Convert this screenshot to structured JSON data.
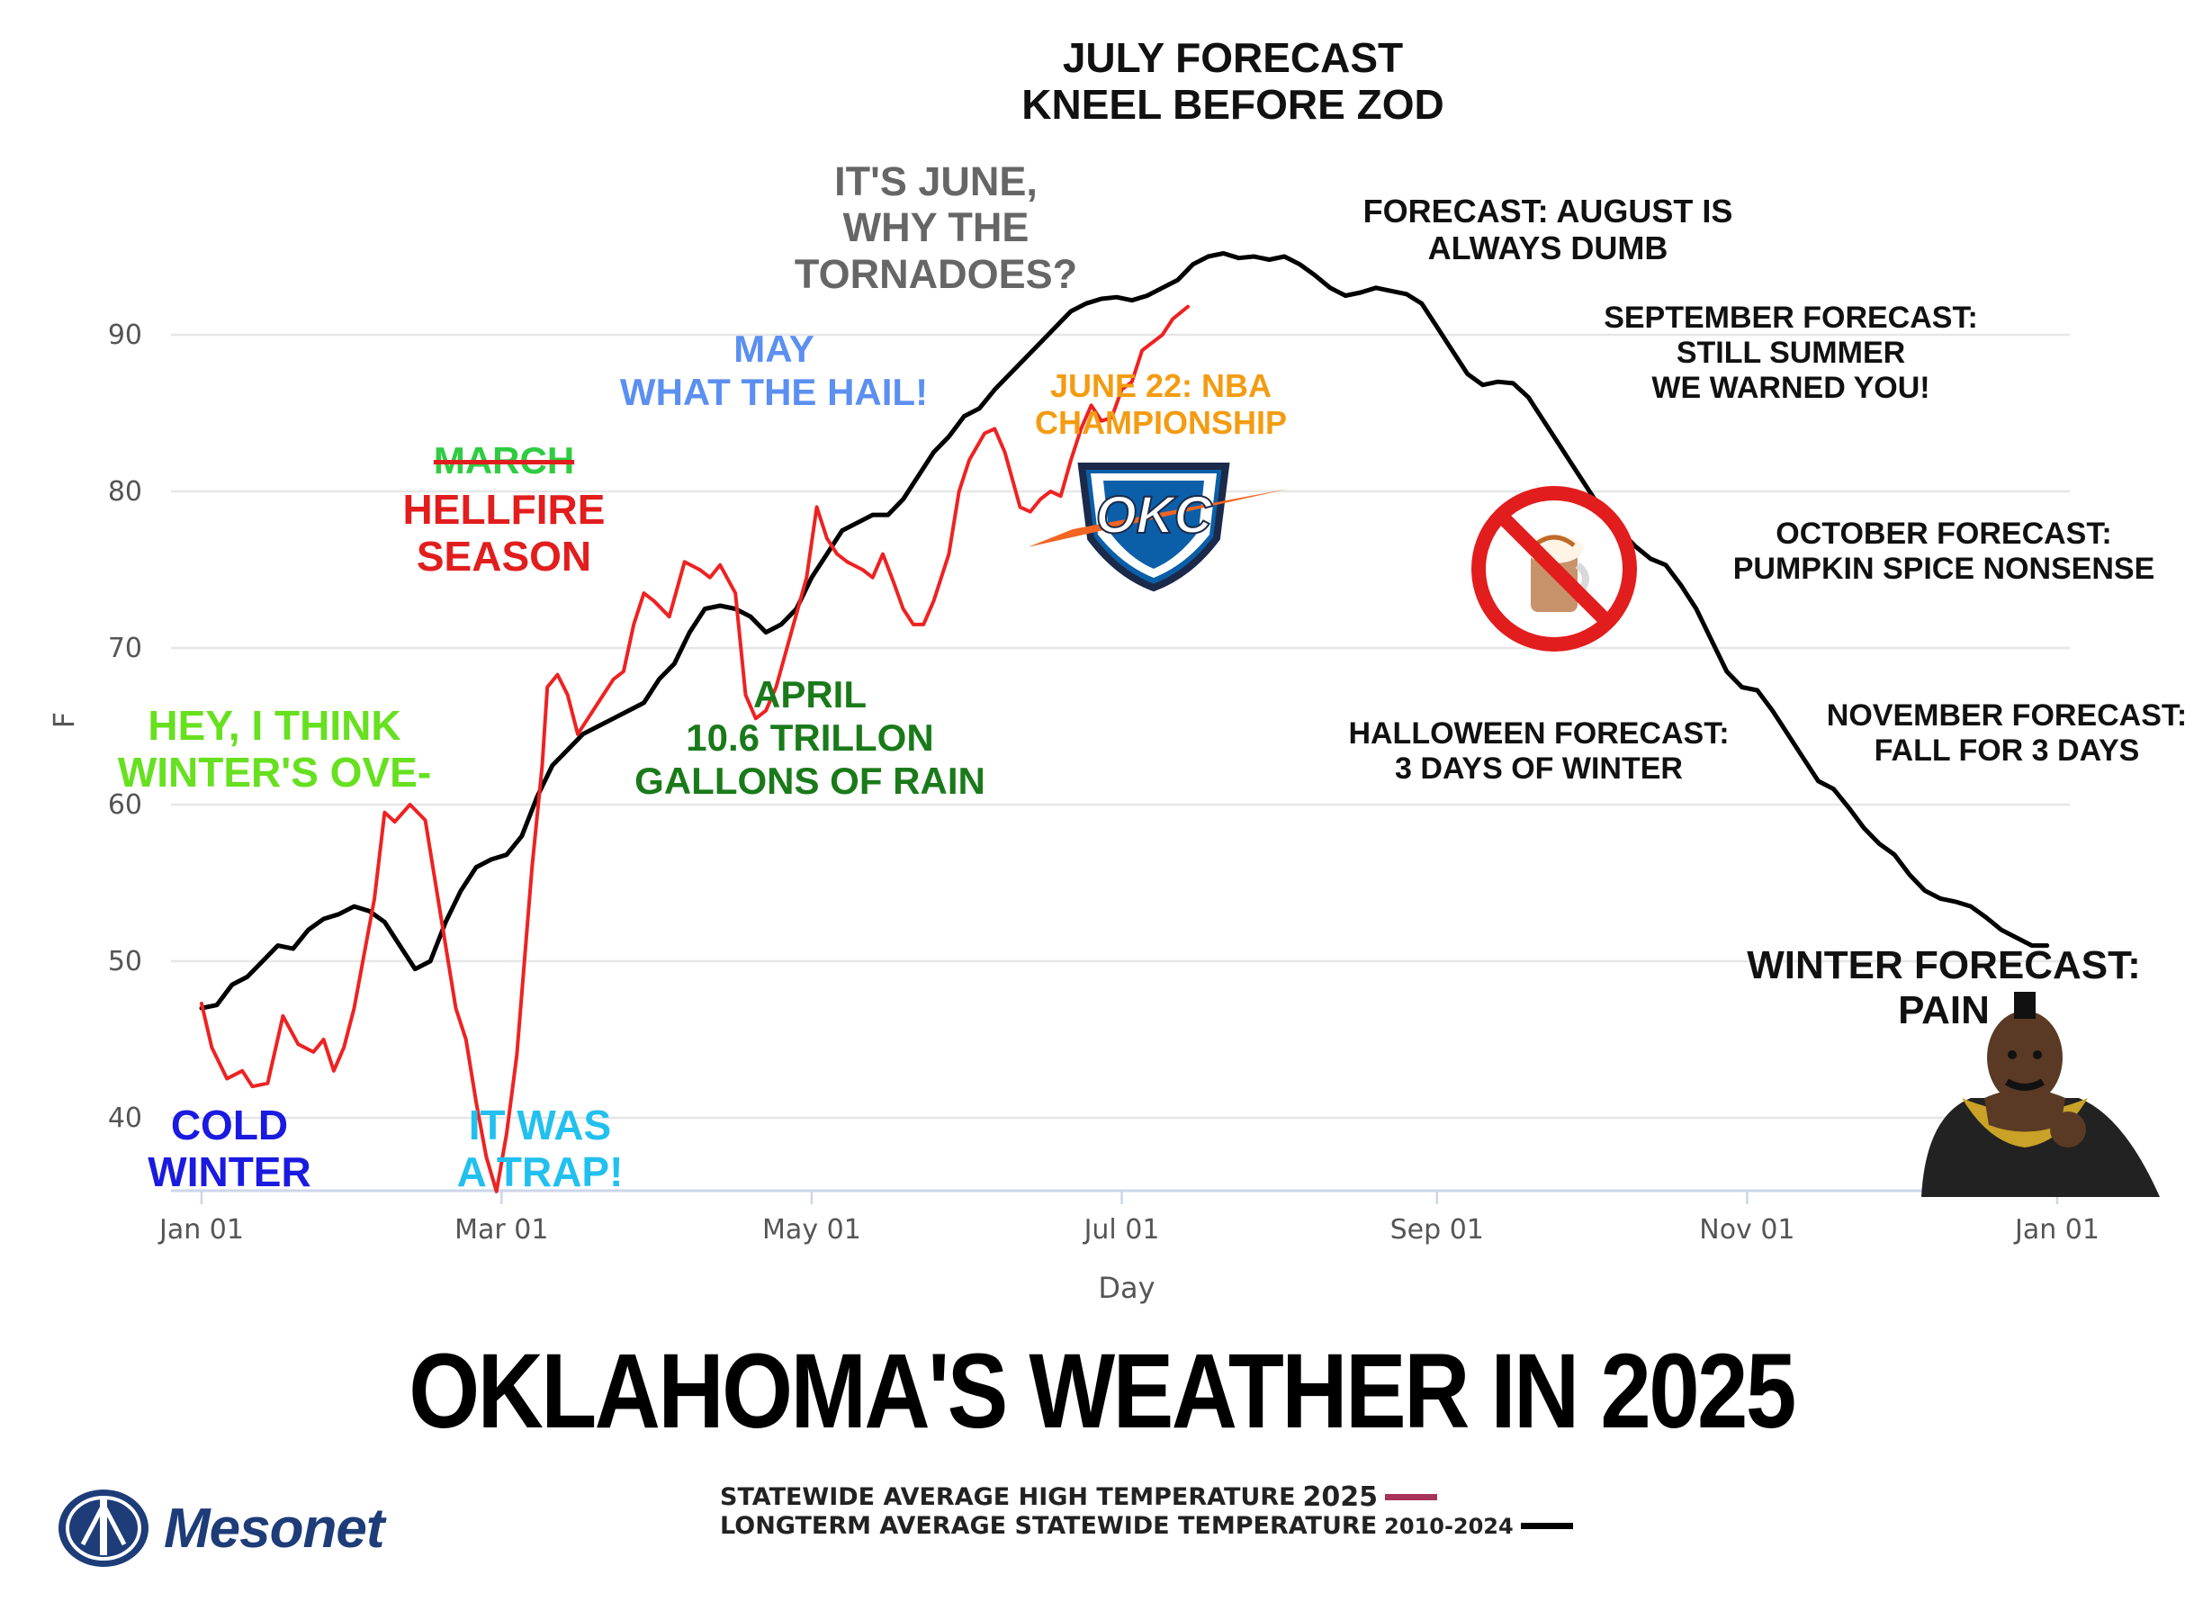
{
  "chart_data": {
    "type": "line",
    "ylabel": "F",
    "xlabel": "Day",
    "x_ticks": [
      "Jan 01",
      "Mar 01",
      "May 01",
      "Jul 01",
      "Sep 01",
      "Nov 01",
      "Jan 01"
    ],
    "y_ticks": [
      40,
      50,
      60,
      70,
      80,
      90
    ],
    "ylim": [
      35,
      97
    ],
    "grid": true,
    "series": [
      {
        "name": "STATEWIDE AVERAGE HIGH TEMPERATURE 2025",
        "color": "#ee2222",
        "points": [
          [
            1,
            47.3
          ],
          [
            3,
            44.5
          ],
          [
            6,
            42.5
          ],
          [
            9,
            43
          ],
          [
            11,
            42
          ],
          [
            14,
            42.2
          ],
          [
            17,
            46.5
          ],
          [
            20,
            44.7
          ],
          [
            23,
            44.2
          ],
          [
            25,
            45
          ],
          [
            27,
            43
          ],
          [
            29,
            44.5
          ],
          [
            31,
            47
          ],
          [
            35,
            54
          ],
          [
            37,
            59.5
          ],
          [
            39,
            58.9
          ],
          [
            42,
            60
          ],
          [
            45,
            59
          ],
          [
            48,
            53
          ],
          [
            51,
            47
          ],
          [
            53,
            45
          ],
          [
            55,
            41
          ],
          [
            57,
            37.5
          ],
          [
            59,
            35.3
          ],
          [
            61,
            39
          ],
          [
            63,
            44
          ],
          [
            66,
            56
          ],
          [
            68,
            62.5
          ],
          [
            69,
            67.5
          ],
          [
            71,
            68.3
          ],
          [
            73,
            67
          ],
          [
            75,
            64.5
          ],
          [
            77,
            65.5
          ],
          [
            79,
            66.5
          ],
          [
            82,
            68
          ],
          [
            84,
            68.5
          ],
          [
            86,
            71.5
          ],
          [
            88,
            73.5
          ],
          [
            90,
            73
          ],
          [
            93,
            72
          ],
          [
            96,
            75.5
          ],
          [
            99,
            75
          ],
          [
            101,
            74.5
          ],
          [
            103,
            75.3
          ],
          [
            106,
            73.5
          ],
          [
            108,
            67
          ],
          [
            110,
            65.5
          ],
          [
            112,
            66
          ],
          [
            114,
            67.5
          ],
          [
            117,
            71
          ],
          [
            120,
            74.5
          ],
          [
            122,
            79
          ],
          [
            124,
            77
          ],
          [
            126,
            76
          ],
          [
            128,
            75.5
          ],
          [
            131,
            75
          ],
          [
            133,
            74.5
          ],
          [
            135,
            76
          ],
          [
            137,
            74.3
          ],
          [
            139,
            72.5
          ],
          [
            141,
            71.5
          ],
          [
            143,
            71.5
          ],
          [
            145,
            73
          ],
          [
            148,
            76
          ],
          [
            150,
            80
          ],
          [
            152,
            82
          ],
          [
            155,
            83.7
          ],
          [
            157,
            84
          ],
          [
            159,
            82.5
          ],
          [
            162,
            79
          ],
          [
            164,
            78.7
          ],
          [
            166,
            79.5
          ],
          [
            168,
            80
          ],
          [
            170,
            79.7
          ],
          [
            172,
            82
          ],
          [
            174,
            84
          ],
          [
            176,
            85.5
          ],
          [
            178,
            84.5
          ],
          [
            180,
            84.7
          ],
          [
            182,
            86.5
          ],
          [
            184,
            87
          ],
          [
            186,
            89
          ],
          [
            188,
            89.5
          ],
          [
            190,
            90
          ],
          [
            192,
            91
          ],
          [
            195,
            91.8
          ]
        ]
      },
      {
        "name": "LONGTERM AVERAGE STATEWIDE TEMPERATURE 2010-2024",
        "color": "#000000",
        "points": [
          [
            1,
            47
          ],
          [
            4,
            47.2
          ],
          [
            7,
            48.5
          ],
          [
            10,
            49
          ],
          [
            13,
            50
          ],
          [
            16,
            51
          ],
          [
            19,
            50.8
          ],
          [
            22,
            52
          ],
          [
            25,
            52.7
          ],
          [
            28,
            53
          ],
          [
            31,
            53.5
          ],
          [
            34,
            53.2
          ],
          [
            37,
            52.5
          ],
          [
            40,
            51
          ],
          [
            43,
            49.5
          ],
          [
            46,
            50
          ],
          [
            49,
            52.5
          ],
          [
            52,
            54.5
          ],
          [
            55,
            56
          ],
          [
            58,
            56.5
          ],
          [
            61,
            56.8
          ],
          [
            64,
            58
          ],
          [
            67,
            60.5
          ],
          [
            70,
            62.5
          ],
          [
            73,
            63.5
          ],
          [
            76,
            64.5
          ],
          [
            79,
            65
          ],
          [
            82,
            65.5
          ],
          [
            85,
            66
          ],
          [
            88,
            66.5
          ],
          [
            91,
            68
          ],
          [
            94,
            69
          ],
          [
            97,
            71
          ],
          [
            100,
            72.5
          ],
          [
            103,
            72.7
          ],
          [
            106,
            72.5
          ],
          [
            109,
            72
          ],
          [
            112,
            71
          ],
          [
            115,
            71.5
          ],
          [
            118,
            72.5
          ],
          [
            121,
            74.5
          ],
          [
            124,
            76
          ],
          [
            127,
            77.5
          ],
          [
            130,
            78
          ],
          [
            133,
            78.5
          ],
          [
            136,
            78.5
          ],
          [
            139,
            79.5
          ],
          [
            142,
            81
          ],
          [
            145,
            82.5
          ],
          [
            148,
            83.5
          ],
          [
            151,
            84.8
          ],
          [
            154,
            85.3
          ],
          [
            157,
            86.5
          ],
          [
            160,
            87.5
          ],
          [
            163,
            88.5
          ],
          [
            166,
            89.5
          ],
          [
            169,
            90.5
          ],
          [
            172,
            91.5
          ],
          [
            175,
            92
          ],
          [
            178,
            92.3
          ],
          [
            181,
            92.4
          ],
          [
            184,
            92.2
          ],
          [
            187,
            92.5
          ],
          [
            190,
            93
          ],
          [
            193,
            93.5
          ],
          [
            196,
            94.5
          ],
          [
            199,
            95
          ],
          [
            202,
            95.2
          ],
          [
            205,
            94.9
          ],
          [
            208,
            95
          ],
          [
            211,
            94.8
          ],
          [
            214,
            95
          ],
          [
            217,
            94.5
          ],
          [
            220,
            93.8
          ],
          [
            223,
            93
          ],
          [
            226,
            92.5
          ],
          [
            229,
            92.7
          ],
          [
            232,
            93
          ],
          [
            235,
            92.8
          ],
          [
            238,
            92.6
          ],
          [
            241,
            92
          ],
          [
            244,
            90.5
          ],
          [
            247,
            89
          ],
          [
            250,
            87.5
          ],
          [
            253,
            86.8
          ],
          [
            256,
            87
          ],
          [
            259,
            86.9
          ],
          [
            262,
            86
          ],
          [
            265,
            84.5
          ],
          [
            268,
            83
          ],
          [
            271,
            81.5
          ],
          [
            274,
            80
          ],
          [
            277,
            78.5
          ],
          [
            280,
            77.5
          ],
          [
            283,
            76.5
          ],
          [
            286,
            75.7
          ],
          [
            289,
            75.3
          ],
          [
            292,
            74
          ],
          [
            295,
            72.5
          ],
          [
            298,
            70.5
          ],
          [
            301,
            68.5
          ],
          [
            304,
            67.5
          ],
          [
            307,
            67.3
          ],
          [
            310,
            66
          ],
          [
            313,
            64.5
          ],
          [
            316,
            63
          ],
          [
            319,
            61.5
          ],
          [
            322,
            61
          ],
          [
            325,
            59.8
          ],
          [
            328,
            58.5
          ],
          [
            331,
            57.5
          ],
          [
            334,
            56.8
          ],
          [
            337,
            55.5
          ],
          [
            340,
            54.5
          ],
          [
            343,
            54
          ],
          [
            346,
            53.8
          ],
          [
            349,
            53.5
          ],
          [
            352,
            52.8
          ],
          [
            355,
            52
          ],
          [
            358,
            51.5
          ],
          [
            361,
            51
          ],
          [
            364,
            51
          ]
        ]
      }
    ]
  },
  "annotations": {
    "july": "JULY FORECAST\nKNEEL BEFORE ZOD",
    "june": "IT'S JUNE,\nWHY THE\nTORNADOES?",
    "august": "FORECAST: AUGUST IS\nALWAYS DUMB",
    "september": "SEPTEMBER FORECAST:\nSTILL SUMMER\nWE WARNED YOU!",
    "may": "MAY\nWHAT THE HAIL!",
    "nba": "JUNE 22: NBA\nCHAMPIONSHIP",
    "march_struck": "MARCH",
    "hellfire": "HELLFIRE\nSEASON",
    "october": "OCTOBER FORECAST:\nPUMPKIN SPICE NONSENSE",
    "april": "APRIL\n10.6 TRILLON\nGALLONS OF RAIN",
    "halloween": "HALLOWEEN FORECAST:\n3 DAYS OF WINTER",
    "november": "NOVEMBER FORECAST:\nFALL FOR 3 DAYS",
    "winter_over": "HEY, I THINK\nWINTER'S OVE-",
    "winter_pain": "WINTER FORECAST:\nPAIN",
    "cold_winter": "COLD\nWINTER",
    "trap": "IT WAS\nA TRAP!"
  },
  "okc_logo_text": "OKC",
  "title": "OKLAHOMA'S WEATHER IN 2025",
  "legend": {
    "item1_label": "STATEWIDE AVERAGE HIGH TEMPERATURE",
    "item1_year": "2025",
    "item1_color": "#a8335a",
    "item2_label": "LONGTERM AVERAGE STATEWIDE TEMPERATURE",
    "item2_years": "2010-2024",
    "item2_color": "#000000"
  },
  "brand": {
    "name": "Mesonet"
  }
}
